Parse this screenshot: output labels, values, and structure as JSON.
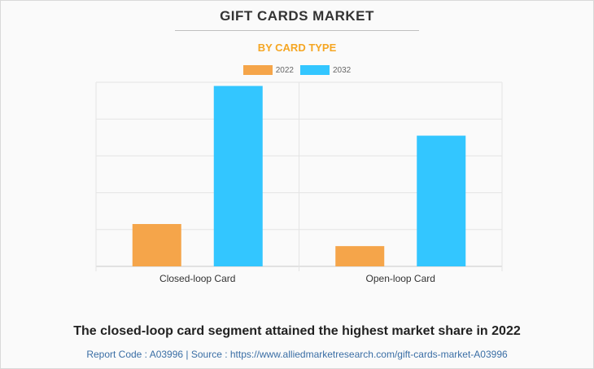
{
  "header": {
    "title": "GIFT CARDS MARKET",
    "subtitle": "BY CARD TYPE"
  },
  "chart_data": {
    "type": "bar",
    "categories": [
      "Closed-loop Card",
      "Open-loop Card"
    ],
    "series": [
      {
        "name": "2022",
        "values": [
          23,
          11
        ],
        "color": "#f5a54a"
      },
      {
        "name": "2032",
        "values": [
          98,
          71
        ],
        "color": "#33c6ff"
      }
    ],
    "ylim": [
      0,
      100
    ],
    "grid": true,
    "legend_position": "top-center",
    "xlabel": "",
    "ylabel": ""
  },
  "footer": {
    "caption": "The closed-loop card segment attained the highest market share in 2022",
    "source": "Report Code : A03996  |  Source : https://www.alliedmarketresearch.com/gift-cards-market-A03996"
  }
}
